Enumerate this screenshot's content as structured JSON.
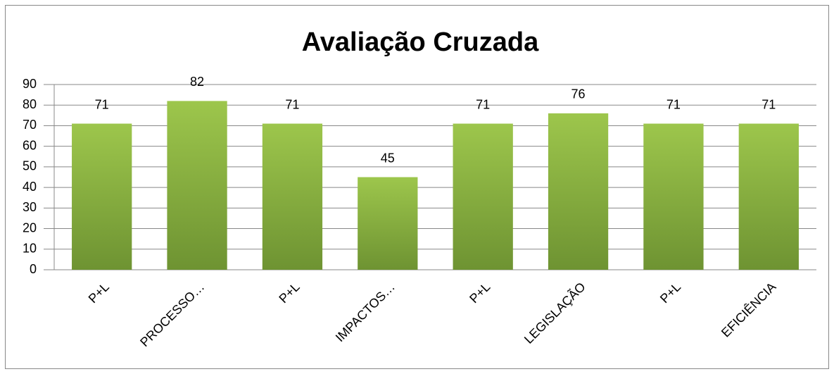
{
  "chart_data": {
    "type": "bar",
    "title": "Avaliação Cruzada",
    "categories": [
      "P+L",
      "PROCESSO…",
      "P+L",
      "IMPACTOS…",
      "P+L",
      "LEGISLAÇÃO",
      "P+L",
      "EFICIÊNCIA"
    ],
    "values": [
      71,
      82,
      71,
      45,
      71,
      76,
      71,
      71
    ],
    "color": "#8db53f",
    "ylim": [
      0,
      90
    ],
    "yticks": [
      0,
      10,
      20,
      30,
      40,
      50,
      60,
      70,
      80,
      90
    ],
    "grid": true
  }
}
